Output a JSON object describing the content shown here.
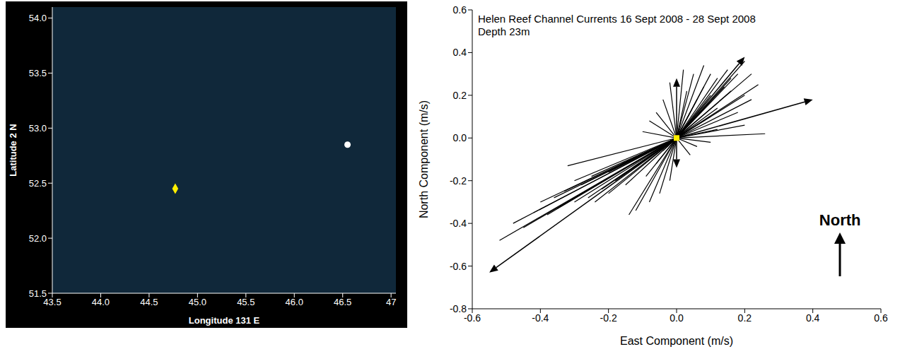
{
  "chart_data": [
    {
      "type": "map",
      "xlabel": "Longitude 131 E",
      "ylabel": "Latitude 2 N",
      "xlim": [
        43.5,
        47.05
      ],
      "ylim": [
        51.5,
        54.1
      ],
      "xticks": [
        43.5,
        {
          "value": 44,
          "label": "44.0"
        },
        44.5,
        {
          "value": 45,
          "label": "45.0"
        },
        45.5,
        {
          "value": 46,
          "label": "46.0"
        },
        46.5,
        47
      ],
      "yticks": [
        51.5,
        {
          "value": 52,
          "label": "52.0"
        },
        52.5,
        {
          "value": 53,
          "label": "53.0"
        },
        53.5,
        {
          "value": 54,
          "label": "54.0"
        }
      ],
      "points": [
        {
          "x": 44.77,
          "y": 52.45,
          "color": "#ffee00",
          "marker": "diamond"
        },
        {
          "x": 46.55,
          "y": 52.85,
          "color": "#ffffff",
          "marker": "circle"
        }
      ]
    },
    {
      "type": "vector",
      "title": "Helen Reef Channel Currents 16 Sept 2008 - 28 Sept 2008",
      "subtitle": "Depth 23m",
      "xlabel": "East Component (m/s)",
      "ylabel": "North Component (m/s)",
      "xlim": [
        -0.6,
        0.6
      ],
      "ylim": [
        -0.8,
        0.6
      ],
      "xticks": [
        -0.6,
        -0.4,
        -0.2,
        {
          "value": 0,
          "label": "0.0"
        },
        0.2,
        0.4,
        0.6
      ],
      "yticks": [
        -0.8,
        -0.6,
        -0.4,
        -0.2,
        {
          "value": 0,
          "label": "0.0"
        },
        0.2,
        0.4,
        0.6
      ],
      "color": "#000000",
      "vectors": {
        "east": [
          -0.52,
          -0.45,
          -0.4,
          -0.38,
          -0.35,
          -0.33,
          -0.3,
          -0.28,
          -0.26,
          -0.25,
          -0.22,
          -0.2,
          -0.18,
          -0.16,
          -0.15,
          -0.13,
          -0.12,
          -0.1,
          -0.09,
          -0.08,
          -0.06,
          -0.05,
          -0.04,
          -0.02,
          -0.32,
          -0.42,
          -0.48,
          -0.36,
          -0.24,
          -0.2,
          -0.3,
          -0.14,
          0.2,
          0.18,
          0.15,
          0.12,
          0.1,
          0.16,
          0.2,
          0.22,
          0.08,
          0.05,
          0.06,
          0.12,
          0.14,
          0.24,
          0.1,
          0.03,
          -0.02,
          -0.04,
          0.26,
          0.2,
          0.18,
          0.1,
          0.04,
          -0.06,
          0.16,
          0.08,
          0.22,
          0.02,
          -0.08,
          0.12,
          0.06,
          0.04,
          -0.1,
          0.1
        ],
        "north": [
          -0.48,
          -0.42,
          -0.3,
          -0.36,
          -0.33,
          -0.25,
          -0.3,
          -0.22,
          -0.28,
          -0.18,
          -0.24,
          -0.16,
          -0.2,
          -0.12,
          -0.22,
          -0.14,
          -0.34,
          -0.08,
          -0.18,
          -0.3,
          -0.12,
          -0.26,
          -0.06,
          -0.2,
          -0.13,
          -0.35,
          -0.4,
          -0.28,
          -0.3,
          -0.26,
          -0.2,
          -0.36,
          0.36,
          0.3,
          0.32,
          0.28,
          0.3,
          0.22,
          0.2,
          0.18,
          0.24,
          0.3,
          0.18,
          0.14,
          0.24,
          0.25,
          0.1,
          0.22,
          0.26,
          0.18,
          0.02,
          0.06,
          0.12,
          0.2,
          0.12,
          0.12,
          0.28,
          0.34,
          0.3,
          0.32,
          0.08,
          0.04,
          -0.04,
          -0.08,
          0.03,
          -0.02
        ]
      },
      "arrows": {
        "east": [
          0,
          0.2,
          0.4,
          -0.55,
          0
        ],
        "north": [
          0.28,
          0.38,
          0.18,
          -0.63,
          -0.14
        ]
      },
      "origin": {
        "x": [
          0
        ],
        "y": [
          0
        ],
        "color": "#ffee00",
        "marker": "square"
      },
      "annotations": [
        {
          "text": "North"
        }
      ]
    }
  ]
}
